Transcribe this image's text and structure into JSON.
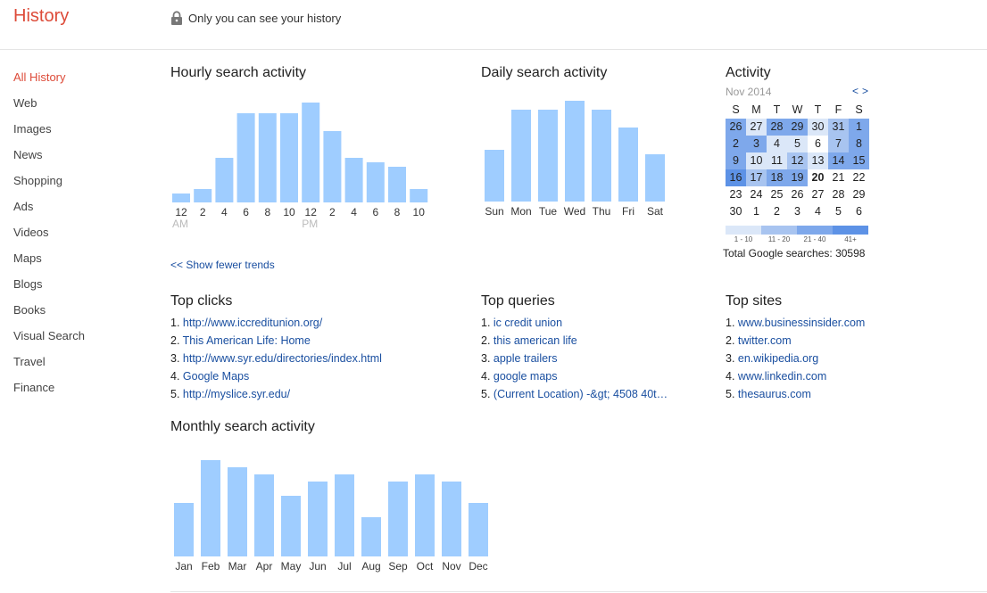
{
  "header": {
    "title": "History",
    "privacy_note": "Only you can see your history"
  },
  "sidebar": {
    "items": [
      {
        "label": "All History",
        "active": true
      },
      {
        "label": "Web"
      },
      {
        "label": "Images"
      },
      {
        "label": "News"
      },
      {
        "label": "Shopping"
      },
      {
        "label": "Ads"
      },
      {
        "label": "Videos"
      },
      {
        "label": "Maps"
      },
      {
        "label": "Blogs"
      },
      {
        "label": "Books"
      },
      {
        "label": "Visual Search"
      },
      {
        "label": "Travel"
      },
      {
        "label": "Finance"
      }
    ]
  },
  "hourly": {
    "title": "Hourly search activity",
    "chart_data": {
      "type": "bar",
      "categories": [
        "12",
        "2",
        "4",
        "6",
        "8",
        "10",
        "12",
        "2",
        "4",
        "6",
        "8",
        "10"
      ],
      "sublabels": [
        "AM",
        "",
        "",
        "",
        "",
        "",
        "PM",
        "",
        "",
        "",
        "",
        ""
      ],
      "values": [
        1,
        1.5,
        5,
        10,
        10,
        10,
        11.2,
        8,
        5,
        4.5,
        4,
        1.5
      ],
      "ylim": [
        0,
        11.2
      ]
    }
  },
  "daily": {
    "title": "Daily search activity",
    "chart_data": {
      "type": "bar",
      "categories": [
        "Sun",
        "Mon",
        "Tue",
        "Wed",
        "Thu",
        "Fri",
        "Sat"
      ],
      "values": [
        5.8,
        10.3,
        10.3,
        11.3,
        10.3,
        8.3,
        5.3
      ],
      "ylim": [
        0,
        11.3
      ]
    }
  },
  "monthly": {
    "title": "Monthly search activity",
    "chart_data": {
      "type": "bar",
      "categories": [
        "Jan",
        "Feb",
        "Mar",
        "Apr",
        "May",
        "Jun",
        "Jul",
        "Aug",
        "Sep",
        "Oct",
        "Nov",
        "Dec"
      ],
      "values": [
        6,
        10.8,
        10,
        9.2,
        6.8,
        8.4,
        9.2,
        4.4,
        8.4,
        9.2,
        8.4,
        6
      ],
      "ylim": [
        0,
        10.8
      ]
    }
  },
  "trends_link": "<< Show fewer trends",
  "top_clicks": {
    "title": "Top clicks",
    "items": [
      "http://www.iccreditunion.org/",
      "This American Life: Home",
      "http://www.syr.edu/directories/index.html",
      "Google Maps",
      "http://myslice.syr.edu/"
    ]
  },
  "top_queries": {
    "title": "Top queries",
    "items": [
      "ic credit union",
      "this american life",
      "apple trailers",
      "google maps",
      "(Current Location) -&gt; 4508 40t…"
    ]
  },
  "top_sites": {
    "title": "Top sites",
    "items": [
      "www.businessinsider.com",
      "twitter.com",
      "en.wikipedia.org",
      "www.linkedin.com",
      "thesaurus.com"
    ]
  },
  "activity": {
    "title": "Activity",
    "month": "Nov 2014",
    "prev": "<",
    "next": ">",
    "weekdays": [
      "S",
      "M",
      "T",
      "W",
      "T",
      "F",
      "S"
    ],
    "weeks": [
      [
        {
          "d": "26",
          "l": 3
        },
        {
          "d": "27",
          "l": 1
        },
        {
          "d": "28",
          "l": 3
        },
        {
          "d": "29",
          "l": 3
        },
        {
          "d": "30",
          "l": 1
        },
        {
          "d": "31",
          "l": 2
        },
        {
          "d": "1",
          "l": 3
        }
      ],
      [
        {
          "d": "2",
          "l": 3
        },
        {
          "d": "3",
          "l": 3
        },
        {
          "d": "4",
          "l": 1
        },
        {
          "d": "5",
          "l": 1
        },
        {
          "d": "6",
          "l": 0
        },
        {
          "d": "7",
          "l": 2
        },
        {
          "d": "8",
          "l": 3
        }
      ],
      [
        {
          "d": "9",
          "l": 3
        },
        {
          "d": "10",
          "l": 1
        },
        {
          "d": "11",
          "l": 1
        },
        {
          "d": "12",
          "l": 2
        },
        {
          "d": "13",
          "l": 1
        },
        {
          "d": "14",
          "l": 3
        },
        {
          "d": "15",
          "l": 3
        }
      ],
      [
        {
          "d": "16",
          "l": 4
        },
        {
          "d": "17",
          "l": 2
        },
        {
          "d": "18",
          "l": 3
        },
        {
          "d": "19",
          "l": 3
        },
        {
          "d": "20",
          "l": 0,
          "bold": true
        },
        {
          "d": "21",
          "l": 0
        },
        {
          "d": "22",
          "l": 0
        }
      ],
      [
        {
          "d": "23",
          "l": 0
        },
        {
          "d": "24",
          "l": 0
        },
        {
          "d": "25",
          "l": 0
        },
        {
          "d": "26",
          "l": 0
        },
        {
          "d": "27",
          "l": 0
        },
        {
          "d": "28",
          "l": 0
        },
        {
          "d": "29",
          "l": 0
        }
      ],
      [
        {
          "d": "30",
          "l": 0
        },
        {
          "d": "1",
          "l": 0
        },
        {
          "d": "2",
          "l": 0
        },
        {
          "d": "3",
          "l": 0
        },
        {
          "d": "4",
          "l": 0
        },
        {
          "d": "5",
          "l": 0
        },
        {
          "d": "6",
          "l": 0
        }
      ]
    ],
    "legend": [
      "1 - 10",
      "11 - 20",
      "21 - 40",
      "41+"
    ],
    "total": "Total Google searches: 30598"
  },
  "colors": {
    "bar": "#9fcdff",
    "accent": "#dd4b39",
    "link": "#1a4fa0",
    "heat": [
      "#dbe7f8",
      "#a8c4f0",
      "#7ea8eb",
      "#5d92e6"
    ]
  }
}
